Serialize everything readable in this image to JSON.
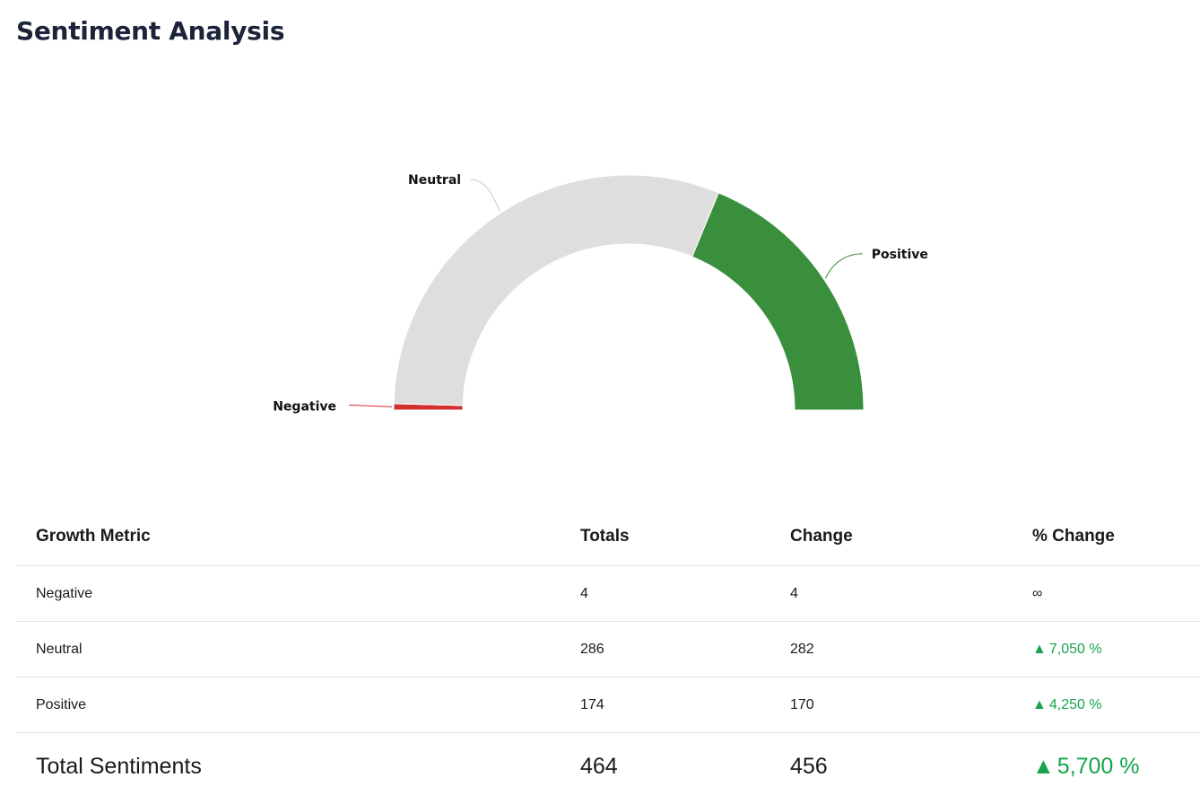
{
  "page": {
    "title": "Sentiment Analysis"
  },
  "chart_data": {
    "type": "pie",
    "subtype": "semi-donut",
    "title": "",
    "slices": [
      {
        "label": "Negative",
        "value": 4,
        "color": "#d32f2f"
      },
      {
        "label": "Neutral",
        "value": 286,
        "color": "#dedede"
      },
      {
        "label": "Positive",
        "value": 174,
        "color": "#3a8f3c"
      }
    ]
  },
  "table": {
    "headers": [
      "Growth Metric",
      "Totals",
      "Change",
      "% Change"
    ],
    "rows": [
      {
        "metric": "Negative",
        "total": "4",
        "change": "4",
        "pct": "∞",
        "trend": "none"
      },
      {
        "metric": "Neutral",
        "total": "286",
        "change": "282",
        "pct": "7,050 %",
        "trend": "up"
      },
      {
        "metric": "Positive",
        "total": "174",
        "change": "170",
        "pct": "4,250 %",
        "trend": "up"
      }
    ],
    "total_row": {
      "metric": "Total Sentiments",
      "total": "464",
      "change": "456",
      "pct": "5,700 %",
      "trend": "up"
    },
    "up_arrow": "▲",
    "up_color": "#16a34a"
  }
}
